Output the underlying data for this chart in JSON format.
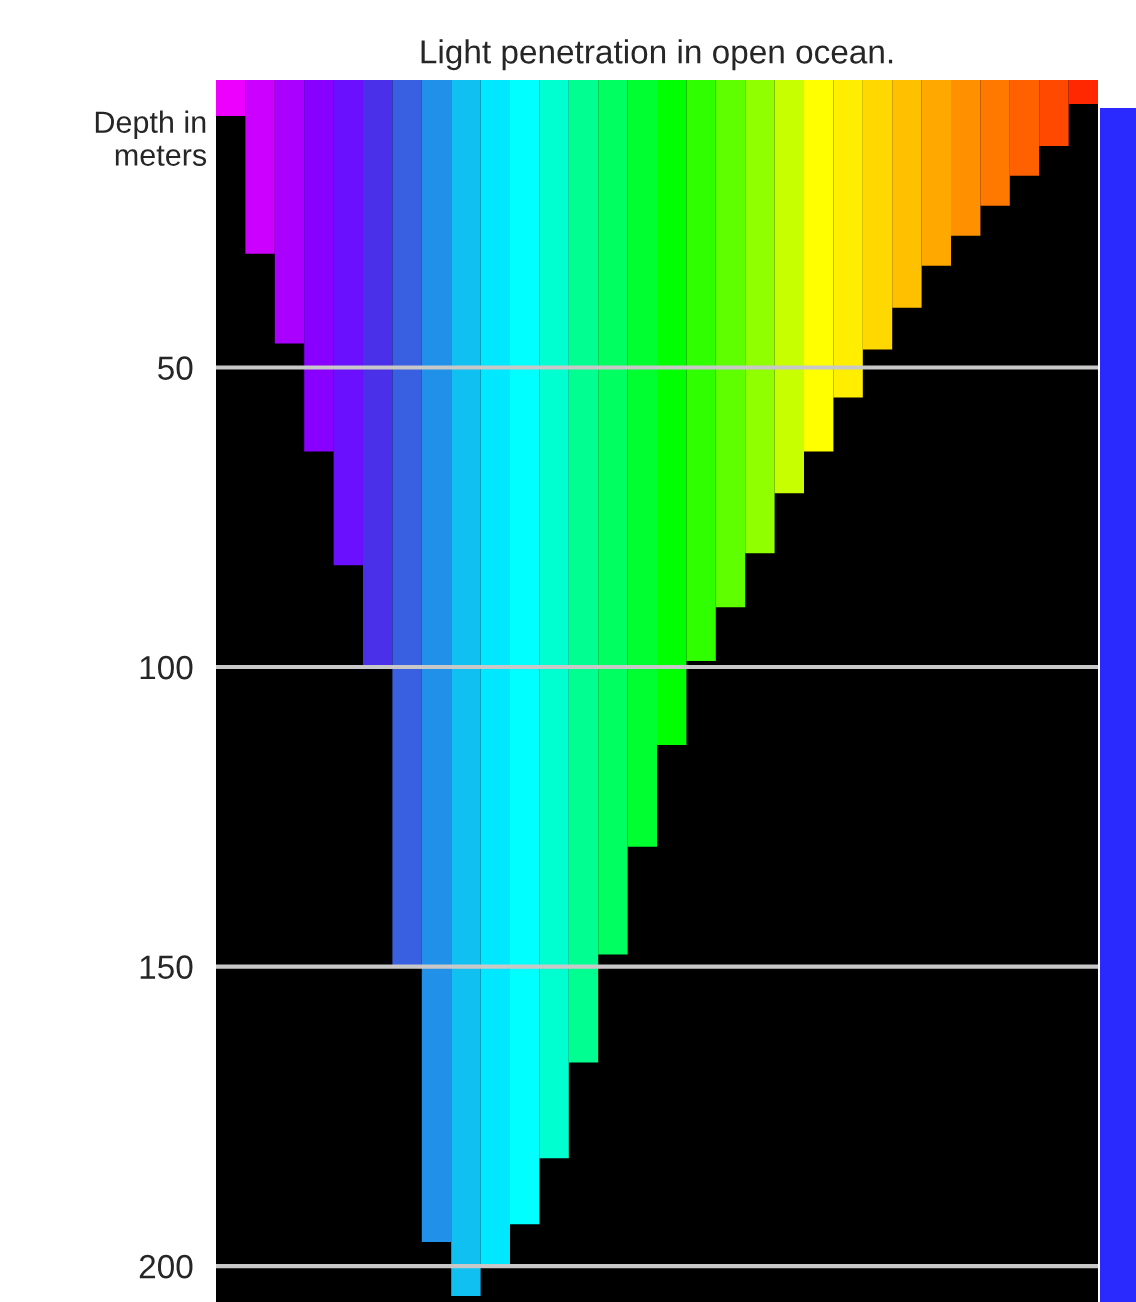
{
  "chart_data": {
    "type": "bar",
    "title": "Light penetration in open ocean.",
    "ylabel": "Depth in\nmeters",
    "categories": [
      null,
      null,
      null,
      null,
      null,
      null,
      null,
      null,
      null,
      null,
      null,
      null,
      null,
      null,
      null,
      null,
      null,
      null,
      null,
      null,
      null,
      null,
      null,
      null,
      null,
      null,
      null,
      null,
      null,
      null
    ],
    "values": [
      8,
      31,
      46,
      64,
      83,
      100,
      150,
      196,
      205,
      200,
      193,
      182,
      166,
      148,
      130,
      113,
      99,
      90,
      81,
      71,
      64,
      55,
      47,
      40,
      33,
      28,
      23,
      18,
      13,
      6
    ],
    "colors": [
      "#ee00ff",
      "#cc00ff",
      "#aa00ff",
      "#8800ff",
      "#6a10ff",
      "#4a30e8",
      "#3860e0",
      "#2090e8",
      "#10c0f0",
      "#00e8ff",
      "#00ffff",
      "#00ffd0",
      "#00ff90",
      "#00ff60",
      "#00ff30",
      "#00ff00",
      "#30ff00",
      "#60ff00",
      "#90ff00",
      "#c8ff00",
      "#ffff00",
      "#ffee00",
      "#ffd800",
      "#ffc000",
      "#ffa800",
      "#ff9000",
      "#ff7800",
      "#ff6000",
      "#ff4800",
      "#ff2800"
    ],
    "ylim": [
      206,
      2
    ],
    "yticks": [
      50,
      100,
      150,
      200
    ],
    "grid": "y",
    "tick_labels": "y"
  }
}
